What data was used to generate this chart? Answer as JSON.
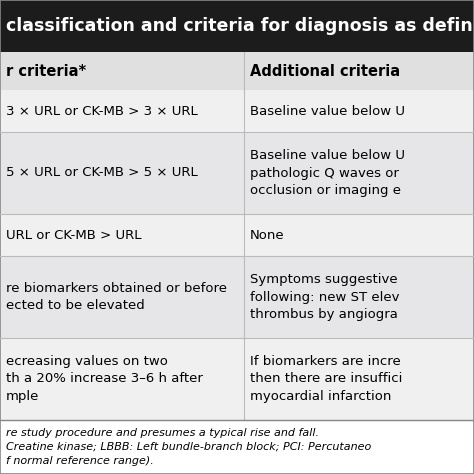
{
  "title": "classification and criteria for diagnosis as defin",
  "title_bg": "#1c1c1c",
  "title_color": "#ffffff",
  "title_fontsize": 12.5,
  "header_row": [
    "r criteria*",
    "Additional criteria"
  ],
  "header_bg": "#e0e0e0",
  "header_fontsize": 10.5,
  "rows": [
    {
      "col1": "3 × URL or CK-MB > 3 × URL",
      "col2": "Baseline value below U",
      "bg": "#f0f0f0",
      "n_lines": 1
    },
    {
      "col1": "5 × URL or CK-MB > 5 × URL",
      "col2": "Baseline value below U\npathologic Q waves or\nocclusion or imaging e",
      "bg": "#e6e6e9",
      "n_lines": 3
    },
    {
      "col1": "URL or CK-MB > URL",
      "col2": "None",
      "bg": "#f0f0f0",
      "n_lines": 1
    },
    {
      "col1": "re biomarkers obtained or before\nected to be elevated",
      "col2": "Symptoms suggestive\nfollowing: new ST elev\nthrombus by angiogra",
      "bg": "#e6e6e9",
      "n_lines": 3
    },
    {
      "col1": "ecreasing values on two\nth a 20% increase 3–6 h after\nmple",
      "col2": "If biomarkers are incre\nthen there are insuffici\nmyocardial infarction",
      "bg": "#f0f0f0",
      "n_lines": 3
    }
  ],
  "footer_lines": [
    "re study procedure and presumes a typical rise and fall.",
    "Creatine kinase; LBBB: Left bundle-branch block; PCI: Percutaneo",
    "f normal reference range)."
  ],
  "footer_fontsize": 8.0,
  "col_split": 0.515,
  "figsize": [
    4.74,
    4.74
  ],
  "dpi": 100,
  "text_fontsize": 9.5,
  "line_color": "#bbbbbb",
  "line_color_strong": "#888888"
}
